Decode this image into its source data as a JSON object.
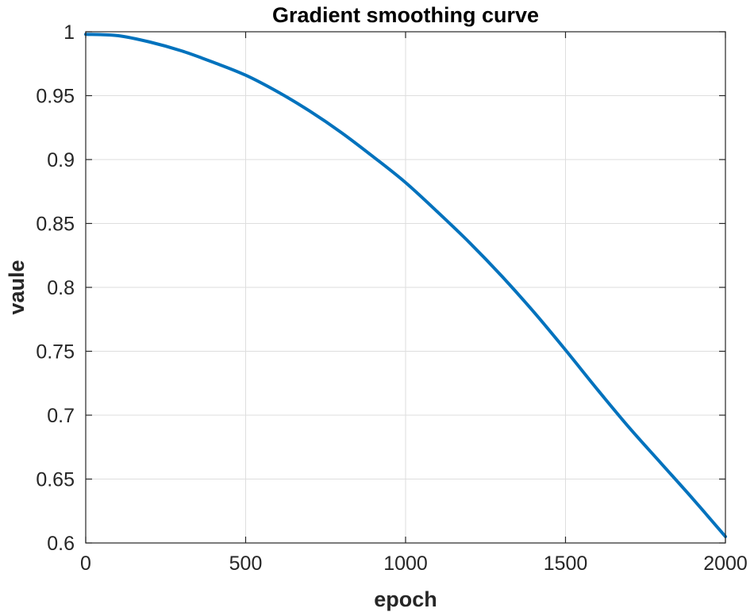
{
  "chart_data": {
    "type": "line",
    "title": "Gradient smoothing curve",
    "xlabel": "epoch",
    "ylabel": "vaule",
    "xlim": [
      0,
      2000
    ],
    "ylim": [
      0.6,
      1
    ],
    "xticks": [
      0,
      500,
      1000,
      1500,
      2000
    ],
    "xtick_labels": [
      "0",
      "500",
      "1000",
      "1500",
      "2000"
    ],
    "yticks": [
      0.6,
      0.65,
      0.7,
      0.75,
      0.8,
      0.85,
      0.9,
      0.95,
      1
    ],
    "ytick_labels": [
      "0.6",
      "0.65",
      "0.7",
      "0.75",
      "0.8",
      "0.85",
      "0.9",
      "0.95",
      "1"
    ],
    "grid": true,
    "series": [
      {
        "color": "#0072BD",
        "x": [
          0,
          100,
          200,
          300,
          400,
          500,
          600,
          700,
          800,
          900,
          1000,
          1100,
          1200,
          1300,
          1400,
          1500,
          1600,
          1700,
          1800,
          1900,
          2000
        ],
        "y": [
          0.998,
          0.997,
          0.992,
          0.985,
          0.976,
          0.966,
          0.953,
          0.938,
          0.921,
          0.902,
          0.882,
          0.859,
          0.835,
          0.809,
          0.781,
          0.751,
          0.72,
          0.69,
          0.662,
          0.634,
          0.605
        ]
      }
    ]
  }
}
